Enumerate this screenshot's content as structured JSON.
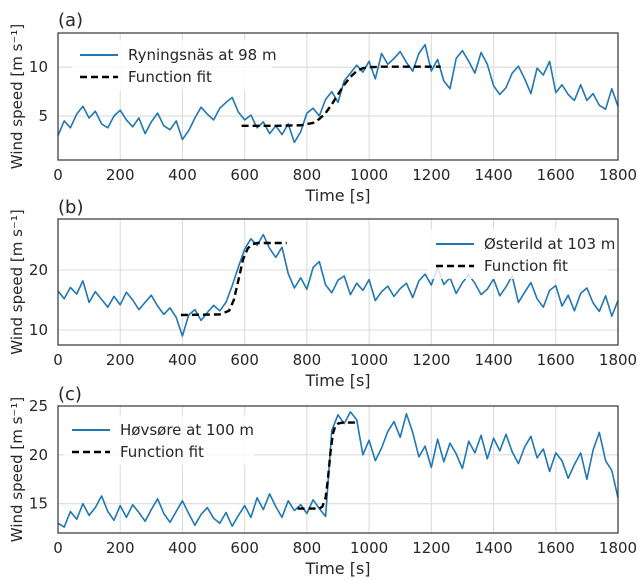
{
  "chart_data": [
    {
      "type": "line",
      "panel_label": "(a)",
      "xlabel": "Time [s]",
      "ylabel": "Wind speed [m s⁻¹]",
      "xlim": [
        0,
        1800
      ],
      "ylim": [
        0.5,
        13.5
      ],
      "xticks": [
        0,
        200,
        400,
        600,
        800,
        1000,
        1200,
        1400,
        1600,
        1800
      ],
      "yticks": [
        5,
        10
      ],
      "grid": true,
      "legend_position": "top-left",
      "colors": {
        "series": "#1f77b4",
        "fit": "#000000"
      },
      "series": [
        {
          "name": "Ryningsnäs at 98 m",
          "style": "solid",
          "x": [
            0,
            20,
            40,
            60,
            80,
            100,
            120,
            140,
            160,
            180,
            200,
            220,
            240,
            260,
            280,
            300,
            320,
            340,
            360,
            380,
            400,
            420,
            440,
            460,
            480,
            500,
            520,
            540,
            560,
            580,
            600,
            620,
            640,
            660,
            680,
            700,
            720,
            740,
            760,
            780,
            800,
            820,
            840,
            860,
            880,
            900,
            920,
            940,
            960,
            980,
            1000,
            1020,
            1040,
            1060,
            1080,
            1100,
            1120,
            1140,
            1160,
            1180,
            1200,
            1220,
            1240,
            1260,
            1280,
            1300,
            1320,
            1340,
            1360,
            1380,
            1400,
            1420,
            1440,
            1460,
            1480,
            1500,
            1520,
            1540,
            1560,
            1580,
            1600,
            1620,
            1640,
            1660,
            1680,
            1700,
            1720,
            1740,
            1760,
            1780,
            1800
          ],
          "y": [
            3.0,
            4.5,
            3.8,
            5.2,
            6.0,
            4.8,
            5.5,
            4.2,
            3.8,
            5.0,
            5.6,
            4.6,
            3.9,
            4.8,
            3.2,
            4.4,
            5.3,
            4.0,
            3.6,
            4.5,
            2.6,
            3.5,
            4.8,
            5.9,
            5.2,
            4.6,
            5.8,
            6.4,
            6.9,
            5.4,
            4.6,
            5.1,
            3.8,
            4.4,
            3.2,
            4.0,
            3.1,
            4.2,
            2.3,
            3.4,
            5.3,
            5.8,
            5.0,
            6.7,
            7.5,
            6.4,
            8.6,
            9.4,
            10.2,
            9.5,
            10.6,
            8.8,
            11.4,
            10.3,
            10.9,
            11.6,
            10.5,
            9.6,
            11.4,
            12.3,
            9.6,
            10.8,
            8.6,
            7.8,
            10.9,
            11.7,
            10.6,
            9.4,
            11.5,
            10.3,
            8.1,
            7.2,
            7.9,
            9.4,
            10.1,
            8.8,
            7.3,
            9.9,
            9.2,
            10.6,
            7.4,
            8.2,
            7.2,
            6.6,
            8.2,
            6.6,
            7.3,
            6.1,
            5.7,
            7.8,
            6.0
          ]
        },
        {
          "name": "Function fit",
          "style": "dashed",
          "x": [
            590,
            700,
            780,
            820,
            840,
            860,
            880,
            900,
            920,
            940,
            960,
            980,
            1000,
            1040,
            1100,
            1230
          ],
          "y": [
            4.0,
            4.0,
            4.05,
            4.3,
            4.7,
            5.3,
            6.2,
            7.2,
            8.2,
            9.0,
            9.6,
            9.9,
            10.0,
            10.05,
            10.05,
            10.05
          ]
        }
      ]
    },
    {
      "type": "line",
      "panel_label": "(b)",
      "xlabel": "Time [s]",
      "ylabel": "Wind speed [m s⁻¹]",
      "xlim": [
        0,
        1800
      ],
      "ylim": [
        7.5,
        28.5
      ],
      "xticks": [
        0,
        200,
        400,
        600,
        800,
        1000,
        1200,
        1400,
        1600,
        1800
      ],
      "yticks": [
        10,
        20
      ],
      "grid": true,
      "legend_position": "center-right",
      "colors": {
        "series": "#1f77b4",
        "fit": "#000000"
      },
      "series": [
        {
          "name": "Østerild at 103 m",
          "style": "solid",
          "x": [
            0,
            20,
            40,
            60,
            80,
            100,
            120,
            140,
            160,
            180,
            200,
            220,
            240,
            260,
            280,
            300,
            320,
            340,
            360,
            380,
            400,
            420,
            440,
            460,
            480,
            500,
            520,
            540,
            560,
            580,
            600,
            620,
            640,
            660,
            680,
            700,
            720,
            740,
            760,
            780,
            800,
            820,
            840,
            860,
            880,
            900,
            920,
            940,
            960,
            980,
            1000,
            1020,
            1040,
            1060,
            1080,
            1100,
            1120,
            1140,
            1160,
            1180,
            1200,
            1220,
            1240,
            1260,
            1280,
            1300,
            1320,
            1340,
            1360,
            1380,
            1400,
            1420,
            1440,
            1460,
            1480,
            1500,
            1520,
            1540,
            1560,
            1580,
            1600,
            1620,
            1640,
            1660,
            1680,
            1700,
            1720,
            1740,
            1760,
            1780,
            1800
          ],
          "y": [
            16.5,
            15.2,
            17.1,
            16.0,
            18.2,
            14.6,
            16.4,
            15.1,
            13.8,
            15.6,
            14.2,
            16.3,
            15.0,
            13.4,
            14.6,
            15.8,
            14.0,
            12.6,
            13.7,
            12.1,
            9.0,
            12.5,
            13.4,
            11.6,
            12.9,
            14.1,
            13.2,
            14.6,
            17.4,
            20.5,
            23.5,
            25.2,
            24.1,
            25.9,
            23.6,
            22.1,
            23.8,
            19.4,
            17.0,
            18.7,
            16.8,
            20.4,
            21.4,
            17.5,
            16.2,
            18.3,
            19.0,
            15.9,
            17.8,
            16.6,
            18.4,
            14.9,
            16.4,
            17.3,
            15.6,
            16.9,
            17.8,
            15.4,
            18.2,
            19.3,
            17.5,
            20.4,
            17.6,
            18.7,
            16.1,
            17.9,
            19.2,
            17.8,
            15.9,
            16.8,
            18.5,
            15.7,
            17.2,
            19.0,
            14.6,
            16.3,
            17.9,
            15.2,
            13.8,
            16.6,
            17.4,
            14.0,
            15.8,
            13.2,
            16.1,
            17.0,
            14.5,
            13.1,
            15.7,
            12.3,
            14.9
          ]
        },
        {
          "name": "Function fit",
          "style": "dashed",
          "x": [
            395,
            520,
            550,
            565,
            580,
            595,
            610,
            625,
            640,
            660,
            700,
            735
          ],
          "y": [
            12.5,
            12.6,
            13.2,
            15.0,
            18.3,
            21.8,
            23.6,
            24.3,
            24.5,
            24.5,
            24.5,
            24.5
          ]
        }
      ]
    },
    {
      "type": "line",
      "panel_label": "(c)",
      "xlabel": "Time [s]",
      "ylabel": "Wind speed [m s⁻¹]",
      "xlim": [
        0,
        1800
      ],
      "ylim": [
        12,
        25
      ],
      "xticks": [
        0,
        200,
        400,
        600,
        800,
        1000,
        1200,
        1400,
        1600,
        1800
      ],
      "yticks": [
        15,
        20,
        25
      ],
      "grid": true,
      "legend_position": "top-left",
      "colors": {
        "series": "#1f77b4",
        "fit": "#000000"
      },
      "series": [
        {
          "name": "Høvsøre at 100 m",
          "style": "solid",
          "x": [
            0,
            20,
            40,
            60,
            80,
            100,
            120,
            140,
            160,
            180,
            200,
            220,
            240,
            260,
            280,
            300,
            320,
            340,
            360,
            380,
            400,
            420,
            440,
            460,
            480,
            500,
            520,
            540,
            560,
            580,
            600,
            620,
            640,
            660,
            680,
            700,
            720,
            740,
            760,
            780,
            800,
            820,
            840,
            860,
            880,
            900,
            920,
            940,
            960,
            980,
            1000,
            1020,
            1040,
            1060,
            1080,
            1100,
            1120,
            1140,
            1160,
            1180,
            1200,
            1220,
            1240,
            1260,
            1280,
            1300,
            1320,
            1340,
            1360,
            1380,
            1400,
            1420,
            1440,
            1460,
            1480,
            1500,
            1520,
            1540,
            1560,
            1580,
            1600,
            1620,
            1640,
            1660,
            1680,
            1700,
            1720,
            1740,
            1760,
            1780,
            1800
          ],
          "y": [
            13.0,
            12.6,
            14.2,
            13.4,
            15.0,
            13.8,
            14.6,
            15.8,
            14.2,
            13.3,
            14.8,
            13.6,
            14.9,
            14.1,
            13.2,
            14.4,
            15.5,
            14.0,
            13.1,
            14.2,
            15.3,
            14.0,
            12.8,
            13.9,
            14.6,
            13.5,
            13.0,
            14.1,
            12.7,
            13.8,
            14.8,
            13.6,
            15.6,
            14.4,
            16.0,
            14.7,
            13.6,
            15.3,
            14.3,
            14.9,
            14.0,
            15.4,
            14.5,
            13.7,
            22.5,
            24.1,
            23.2,
            24.4,
            23.6,
            20.0,
            21.5,
            19.4,
            20.7,
            22.4,
            23.4,
            21.8,
            24.2,
            22.3,
            19.8,
            20.9,
            18.7,
            21.6,
            19.3,
            21.2,
            20.1,
            18.6,
            21.4,
            20.2,
            22.0,
            19.6,
            21.7,
            20.4,
            22.1,
            20.3,
            19.1,
            20.8,
            21.9,
            19.7,
            20.6,
            18.3,
            20.2,
            19.4,
            17.6,
            19.0,
            20.2,
            17.5,
            20.5,
            22.3,
            19.4,
            18.4,
            15.6
          ]
        },
        {
          "name": "Function fit",
          "style": "dashed",
          "x": [
            770,
            840,
            850,
            860,
            868,
            876,
            884,
            892,
            900,
            915,
            930,
            960
          ],
          "y": [
            14.5,
            14.5,
            14.7,
            15.6,
            17.6,
            20.3,
            22.2,
            23.0,
            23.2,
            23.3,
            23.3,
            23.3
          ]
        }
      ]
    }
  ]
}
